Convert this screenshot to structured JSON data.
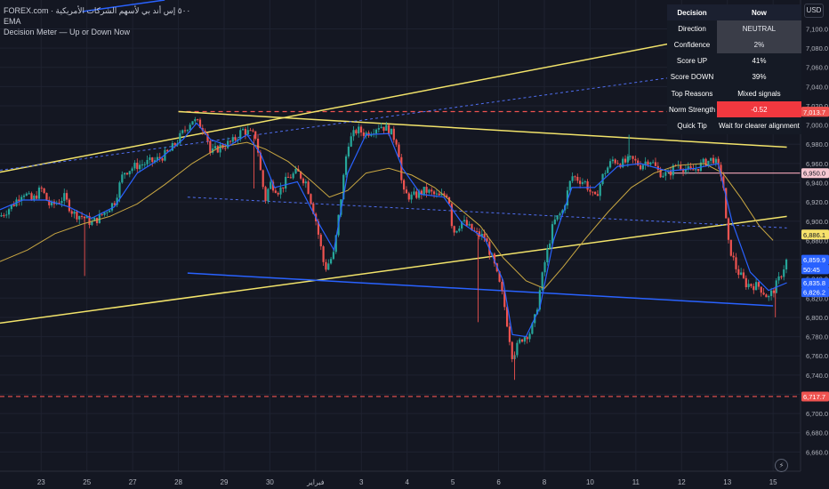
{
  "legend": {
    "symbol": "FOREX.com · ٥٠٠ إس أند بي لأسهم الشركات الأمريكية",
    "ema_label": "EMA",
    "indicator_name": "Decision Meter — Up or Down Now"
  },
  "currency_button": "USD",
  "decision_table": {
    "header": {
      "key": "Decision",
      "value": "Now"
    },
    "rows": [
      {
        "key": "Direction",
        "value": "NEUTRAL",
        "style": "gray"
      },
      {
        "key": "Confidence",
        "value": "2%",
        "style": "gray"
      },
      {
        "key": "Score UP",
        "value": "41%",
        "style": "normal"
      },
      {
        "key": "Score DOWN",
        "value": "39%",
        "style": "normal"
      },
      {
        "key": "Top Reasons",
        "value": "Mixed signals",
        "style": "normal"
      },
      {
        "key": "Norm Strength",
        "value": "-0.52",
        "style": "red"
      },
      {
        "key": "Quick Tip",
        "value": "Wait for clearer alignment",
        "style": "normal"
      }
    ]
  },
  "colors": {
    "up": "#26a69a",
    "down": "#ef5350",
    "ema_fast": "#2962ff",
    "ema_slow": "#c9a742",
    "trend_yellow": "#f2e36a",
    "trend_blue": "#2962ff",
    "level_red": "#ef5350",
    "level_pink": "#f4a7b9"
  },
  "chart_data": {
    "type": "candlestick",
    "y_range": [
      6640,
      7130
    ],
    "x_range": [
      0,
      17.5
    ],
    "y_ticks": [
      6660,
      6680,
      6700,
      6720,
      6740,
      6760,
      6780,
      6800,
      6820,
      6840,
      6860,
      6880,
      6900,
      6920,
      6940,
      6960,
      6980,
      7000,
      7020,
      7040,
      7060,
      7080,
      7100
    ],
    "y_tick_labels": [
      "6,660.0",
      "6,680.0",
      "6,700.0",
      "6,720.0",
      "6,740.0",
      "6,760.0",
      "6,780.0",
      "6,800.0",
      "6,820.0",
      "6,840.0",
      "6,860.0",
      "6,880.0",
      "6,900.0",
      "6,920.0",
      "6,940.0",
      "6,960.0",
      "6,980.0",
      "7,000.0",
      "7,020.0",
      "7,040.0",
      "7,060.0",
      "7,080.0",
      "7,100.0"
    ],
    "x_ticks": [
      {
        "x": 0.9,
        "label": "23"
      },
      {
        "x": 1.9,
        "label": "25"
      },
      {
        "x": 2.9,
        "label": "27"
      },
      {
        "x": 3.9,
        "label": "28"
      },
      {
        "x": 4.9,
        "label": "29"
      },
      {
        "x": 5.9,
        "label": "30"
      },
      {
        "x": 6.9,
        "label": "فبراير"
      },
      {
        "x": 7.9,
        "label": "3"
      },
      {
        "x": 8.9,
        "label": "4"
      },
      {
        "x": 9.9,
        "label": "5"
      },
      {
        "x": 10.9,
        "label": "6"
      },
      {
        "x": 11.9,
        "label": "8"
      },
      {
        "x": 12.9,
        "label": "10"
      },
      {
        "x": 13.9,
        "label": "11"
      },
      {
        "x": 14.9,
        "label": "12"
      },
      {
        "x": 15.9,
        "label": "13"
      },
      {
        "x": 16.9,
        "label": "15"
      }
    ],
    "price_labels": [
      {
        "value": 7013.9,
        "label": "7,013.9",
        "bg": "#ef5350",
        "fg": "#ffffff"
      },
      {
        "value": 7013.7,
        "label": "7,013.7",
        "bg": "#ef5350",
        "fg": "#ffffff"
      },
      {
        "value": 6950.0,
        "label": "6,950.0",
        "bg": "#f8c8d2",
        "fg": "#131722"
      },
      {
        "value": 6886.1,
        "label": "6,886.1",
        "bg": "#f7e26b",
        "fg": "#131722"
      },
      {
        "value": 6859.9,
        "label": "6,859.9",
        "bg": "#2962ff",
        "fg": "#ffffff"
      },
      {
        "value": 6850,
        "label": "50:45",
        "bg": "#2962ff",
        "fg": "#ffffff"
      },
      {
        "value": 6835.8,
        "label": "6,835.8",
        "bg": "#2962ff",
        "fg": "#ffffff"
      },
      {
        "value": 6826.2,
        "label": "6,826.2",
        "bg": "#2962ff",
        "fg": "#ffffff"
      },
      {
        "value": 6717.7,
        "label": "6,717.7",
        "bg": "#ef5350",
        "fg": "#ffffff"
      }
    ],
    "horizontal_levels": [
      {
        "value": 7014,
        "style": "dashed",
        "color": "#ef5350",
        "from_x": 3.9
      },
      {
        "value": 6717.7,
        "style": "dashed",
        "color": "#ef5350",
        "from_x": 0
      },
      {
        "value": 6950,
        "style": "solid",
        "color": "#f4a7b9",
        "from_x": 14.6
      }
    ],
    "trend_lines": [
      {
        "x1": 0,
        "y1": 6951,
        "x2": 17.2,
        "y2": 7108,
        "color": "#f2e36a",
        "width": 1.5,
        "dash": false
      },
      {
        "x1": 0,
        "y1": 6794,
        "x2": 17.2,
        "y2": 6905,
        "color": "#f2e36a",
        "width": 1.5,
        "dash": false
      },
      {
        "x1": 3.9,
        "y1": 7014,
        "x2": 17.2,
        "y2": 6977,
        "color": "#f2e36a",
        "width": 1.5,
        "dash": false
      },
      {
        "x1": 0,
        "y1": 6953,
        "x2": 17.2,
        "y2": 7066,
        "color": "#4f6ef0",
        "width": 1,
        "dash": true
      },
      {
        "x1": 4.1,
        "y1": 6925,
        "x2": 17.2,
        "y2": 6893,
        "color": "#4f6ef0",
        "width": 1,
        "dash": true
      },
      {
        "x1": 4.1,
        "y1": 6846,
        "x2": 16.9,
        "y2": 6812,
        "color": "#2962ff",
        "width": 1.5,
        "dash": false
      },
      {
        "x1": 1.8,
        "y1": 7118,
        "x2": 3.6,
        "y2": 7130,
        "color": "#2962ff",
        "width": 1.5,
        "dash": false
      }
    ],
    "price_path": [
      [
        0,
        6905
      ],
      [
        0.3,
        6918
      ],
      [
        0.5,
        6931
      ],
      [
        0.7,
        6921
      ],
      [
        0.9,
        6934
      ],
      [
        1.1,
        6915
      ],
      [
        1.4,
        6925
      ],
      [
        1.6,
        6908
      ],
      [
        1.8,
        6905
      ],
      [
        2.0,
        6898
      ],
      [
        2.2,
        6905
      ],
      [
        2.5,
        6920
      ],
      [
        2.7,
        6951
      ],
      [
        3.0,
        6958
      ],
      [
        3.4,
        6963
      ],
      [
        3.7,
        6972
      ],
      [
        3.9,
        6985
      ],
      [
        4.2,
        7006
      ],
      [
        4.5,
        6995
      ],
      [
        4.6,
        6970
      ],
      [
        4.8,
        6977
      ],
      [
        5.1,
        6983
      ],
      [
        5.3,
        6995
      ],
      [
        5.6,
        6988
      ],
      [
        5.7,
        6950
      ],
      [
        5.8,
        6922
      ],
      [
        5.9,
        6940
      ],
      [
        6.1,
        6931
      ],
      [
        6.3,
        6945
      ],
      [
        6.5,
        6951
      ],
      [
        6.7,
        6940
      ],
      [
        6.9,
        6902
      ],
      [
        7.1,
        6850
      ],
      [
        7.3,
        6866
      ],
      [
        7.5,
        6942
      ],
      [
        7.6,
        6981
      ],
      [
        7.8,
        6995
      ],
      [
        8.0,
        6991
      ],
      [
        8.3,
        7000
      ],
      [
        8.5,
        6995
      ],
      [
        8.7,
        6981
      ],
      [
        8.8,
        6929
      ],
      [
        9.0,
        6925
      ],
      [
        9.3,
        6932
      ],
      [
        9.6,
        6925
      ],
      [
        9.8,
        6929
      ],
      [
        9.9,
        6888
      ],
      [
        10.1,
        6900
      ],
      [
        10.4,
        6887
      ],
      [
        10.6,
        6883
      ],
      [
        10.8,
        6855
      ],
      [
        11.0,
        6820
      ],
      [
        11.2,
        6760
      ],
      [
        11.4,
        6778
      ],
      [
        11.6,
        6785
      ],
      [
        11.7,
        6800
      ],
      [
        11.9,
        6855
      ],
      [
        12.1,
        6898
      ],
      [
        12.3,
        6911
      ],
      [
        12.5,
        6947
      ],
      [
        12.8,
        6940
      ],
      [
        13.0,
        6922
      ],
      [
        13.2,
        6950
      ],
      [
        13.4,
        6964
      ],
      [
        13.6,
        6960
      ],
      [
        13.8,
        6964
      ],
      [
        14.0,
        6958
      ],
      [
        14.2,
        6965
      ],
      [
        14.4,
        6951
      ],
      [
        14.6,
        6948
      ],
      [
        14.8,
        6960
      ],
      [
        15.1,
        6951
      ],
      [
        15.4,
        6961
      ],
      [
        15.6,
        6965
      ],
      [
        15.8,
        6945
      ],
      [
        15.9,
        6880
      ],
      [
        16.1,
        6850
      ],
      [
        16.3,
        6835
      ],
      [
        16.6,
        6832
      ],
      [
        16.8,
        6820
      ],
      [
        17.0,
        6836
      ],
      [
        17.1,
        6848
      ],
      [
        17.2,
        6860
      ]
    ],
    "spikes": [
      {
        "x": 1.85,
        "low": 6843
      },
      {
        "x": 5.55,
        "low": 6934
      },
      {
        "x": 10.45,
        "low": 6795
      },
      {
        "x": 11.25,
        "low": 6735
      },
      {
        "x": 13.75,
        "high": 6990
      },
      {
        "x": 16.95,
        "low": 6800
      }
    ],
    "ema_fast_path": [
      [
        0,
        6912
      ],
      [
        0.5,
        6922
      ],
      [
        1.0,
        6922
      ],
      [
        1.5,
        6915
      ],
      [
        2.0,
        6903
      ],
      [
        2.5,
        6915
      ],
      [
        3.0,
        6950
      ],
      [
        3.5,
        6965
      ],
      [
        4.0,
        6985
      ],
      [
        4.3,
        7002
      ],
      [
        4.6,
        6985
      ],
      [
        5.0,
        6978
      ],
      [
        5.4,
        6990
      ],
      [
        5.7,
        6970
      ],
      [
        6.0,
        6935
      ],
      [
        6.5,
        6941
      ],
      [
        7.0,
        6895
      ],
      [
        7.3,
        6870
      ],
      [
        7.6,
        6950
      ],
      [
        8.0,
        6990
      ],
      [
        8.5,
        6991
      ],
      [
        8.8,
        6955
      ],
      [
        9.2,
        6928
      ],
      [
        9.7,
        6925
      ],
      [
        10.1,
        6898
      ],
      [
        10.6,
        6882
      ],
      [
        11.0,
        6838
      ],
      [
        11.2,
        6782
      ],
      [
        11.5,
        6780
      ],
      [
        11.8,
        6810
      ],
      [
        12.1,
        6880
      ],
      [
        12.5,
        6935
      ],
      [
        13.0,
        6935
      ],
      [
        13.5,
        6957
      ],
      [
        14.0,
        6960
      ],
      [
        14.6,
        6952
      ],
      [
        15.2,
        6955
      ],
      [
        15.7,
        6960
      ],
      [
        16.0,
        6900
      ],
      [
        16.4,
        6847
      ],
      [
        16.8,
        6828
      ],
      [
        17.2,
        6836
      ]
    ],
    "ema_slow_path": [
      [
        0,
        6858
      ],
      [
        0.6,
        6870
      ],
      [
        1.2,
        6887
      ],
      [
        1.8,
        6897
      ],
      [
        2.4,
        6905
      ],
      [
        3.0,
        6918
      ],
      [
        3.6,
        6938
      ],
      [
        4.2,
        6960
      ],
      [
        4.8,
        6977
      ],
      [
        5.4,
        6982
      ],
      [
        5.8,
        6975
      ],
      [
        6.3,
        6962
      ],
      [
        6.8,
        6942
      ],
      [
        7.2,
        6925
      ],
      [
        7.6,
        6932
      ],
      [
        8.0,
        6950
      ],
      [
        8.5,
        6955
      ],
      [
        9.0,
        6948
      ],
      [
        9.5,
        6935
      ],
      [
        10.0,
        6915
      ],
      [
        10.5,
        6895
      ],
      [
        11.0,
        6862
      ],
      [
        11.5,
        6838
      ],
      [
        11.9,
        6830
      ],
      [
        12.3,
        6852
      ],
      [
        12.8,
        6882
      ],
      [
        13.3,
        6910
      ],
      [
        13.8,
        6935
      ],
      [
        14.3,
        6950
      ],
      [
        14.8,
        6958
      ],
      [
        15.4,
        6960
      ],
      [
        15.8,
        6950
      ],
      [
        16.2,
        6924
      ],
      [
        16.6,
        6895
      ],
      [
        16.9,
        6880
      ]
    ]
  }
}
